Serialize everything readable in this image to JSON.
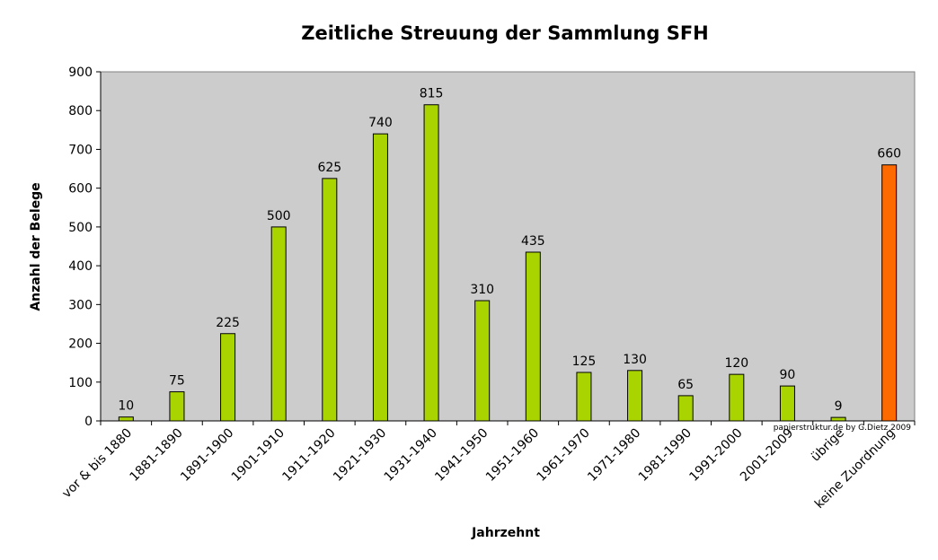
{
  "chart_data": {
    "type": "bar",
    "title": "Zeitliche Streuung der Sammlung SFH",
    "xlabel": "Jahrzehnt",
    "ylabel": "Anzahl der Belege",
    "ylim": [
      0,
      900
    ],
    "yticks": [
      0,
      100,
      200,
      300,
      400,
      500,
      600,
      700,
      800,
      900
    ],
    "categories": [
      "vor & bis 1880",
      "1881-1890",
      "1891-1900",
      "1901-1910",
      "1911-1920",
      "1921-1930",
      "1931-1940",
      "1941-1950",
      "1951-1960",
      "1961-1970",
      "1971-1980",
      "1981-1990",
      "1991-2000",
      "2001-2009",
      "übrige",
      "keine Zuordnung"
    ],
    "values": [
      10,
      75,
      225,
      500,
      625,
      740,
      815,
      310,
      435,
      125,
      130,
      65,
      120,
      90,
      9,
      660
    ],
    "data_labels": [
      "10",
      "75",
      "225",
      "500",
      "625",
      "740",
      "815",
      "310",
      "435",
      "125",
      "130",
      "65",
      "120",
      "90",
      "9",
      "660"
    ],
    "bar_colors": [
      "#aad400",
      "#aad400",
      "#aad400",
      "#aad400",
      "#aad400",
      "#aad400",
      "#aad400",
      "#aad400",
      "#aad400",
      "#aad400",
      "#aad400",
      "#aad400",
      "#aad400",
      "#aad400",
      "#aad400",
      "#ff6a00"
    ],
    "plot_background": "#cccccc",
    "grid": false,
    "legend": "none",
    "credit": "papierstruktur.de by G.Dietz 2009"
  }
}
